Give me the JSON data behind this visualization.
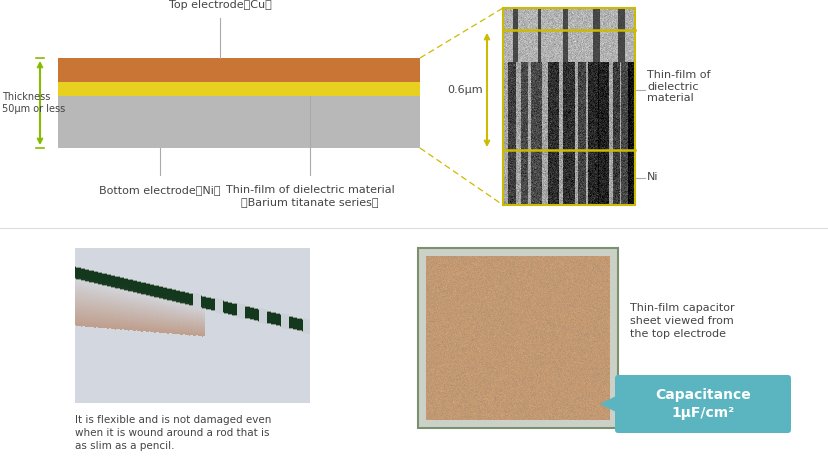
{
  "bg_color": "#ffffff",
  "layer_colors": {
    "cu": "#c87535",
    "dielectric": "#e8d020",
    "ni": "#b8b8b8"
  },
  "dashed_box_color": "#ccbb00",
  "yellow_line_color": "#ccbb00",
  "green_arrow_color": "#88bb00",
  "label_color": "#444444",
  "capacitance_bg": "#5ab5c0",
  "capacitance_text": "#ffffff",
  "labels": {
    "top_electrode": "Top electrode（Cu）",
    "bottom_electrode": "Bottom electrode（Ni）",
    "dielectric_material": "Thin-film of dielectric material\n（Barium titanate series）",
    "thin_film_right": "Thin-film of\ndielectric\nmaterial",
    "ni_right": "Ni",
    "thickness": "Thickness\n50μm or less",
    "dimension": "0.6μm",
    "flexible_text": "It is flexible and is not damaged even\nwhen it is wound around a rod that is\nas slim as a pencil.",
    "capacitor_text": "Thin-film capacitor\nsheet viewed from\nthe top electrode",
    "capacitance_label": "Capacitance\n1μF/cm²"
  }
}
